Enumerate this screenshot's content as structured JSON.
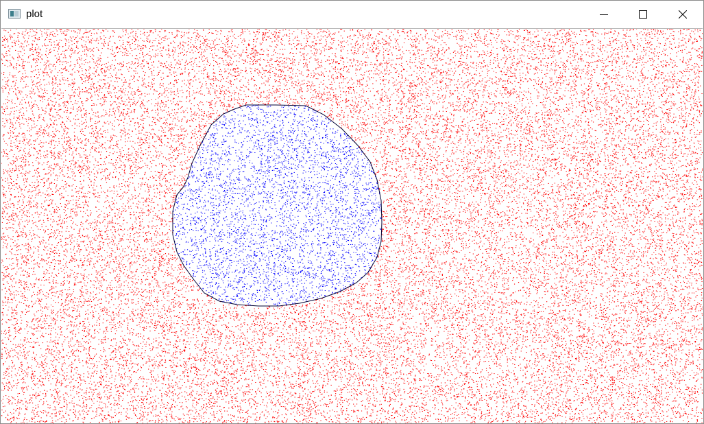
{
  "window": {
    "title": "plot",
    "icons": {
      "app": "window-app-icon",
      "minimize": "minimize-icon",
      "maximize": "maximize-icon",
      "close": "close-icon"
    }
  },
  "plot": {
    "type": "scatter",
    "series": [
      {
        "class": "outside",
        "color": "#ff0000"
      },
      {
        "class": "inside",
        "color": "#0000ff"
      }
    ],
    "boundary_color": "#000033",
    "background": "#ffffff"
  }
}
